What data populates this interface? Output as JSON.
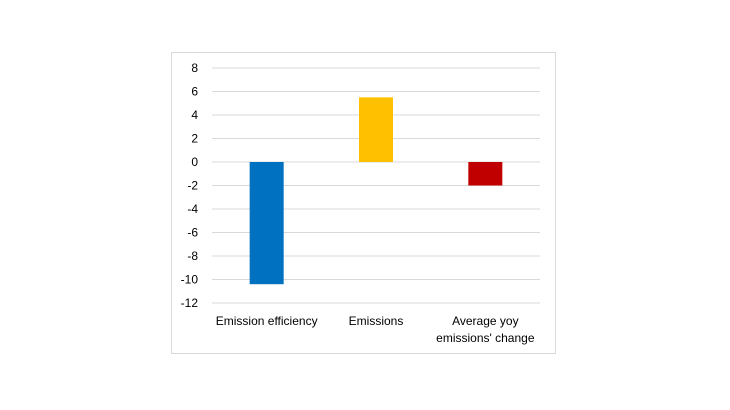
{
  "chart_data": {
    "type": "bar",
    "categories": [
      [
        "Emission efficiency"
      ],
      [
        "Emissions"
      ],
      [
        "Average yoy",
        "emissions' change"
      ]
    ],
    "values": [
      -10.4,
      5.5,
      -2.0
    ],
    "colors": [
      "#0070c0",
      "#ffc000",
      "#c00000"
    ],
    "ylim": [
      -12,
      8
    ],
    "yticks": [
      8,
      6,
      4,
      2,
      0,
      -2,
      -4,
      -6,
      -8,
      -10,
      -12
    ],
    "grid": true,
    "legend": "none",
    "title": "",
    "xlabel": "",
    "ylabel": ""
  }
}
